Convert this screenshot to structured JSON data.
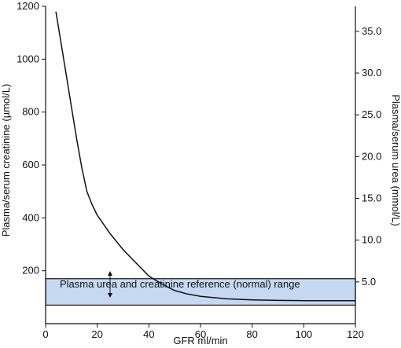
{
  "chart_data": {
    "type": "line",
    "xlabel": "GFR ml/min",
    "ylabel_left": "Plasma/serum creatinine (µmol/L)",
    "ylabel_right": "Plasma/serum urea (mmol/L)",
    "xlim": [
      0,
      120
    ],
    "ylim_left": [
      0,
      1200
    ],
    "ylim_right": [
      0,
      38
    ],
    "x_ticks": [
      0,
      20,
      40,
      60,
      80,
      100,
      120
    ],
    "y_left_ticks": [
      200,
      400,
      600,
      800,
      1000,
      1200
    ],
    "y_right_ticks": [
      "5.0",
      "10.0",
      "15.0",
      "20.0",
      "25.0",
      "30.0",
      "35.0"
    ],
    "reference_band": {
      "label": "Plasma urea and creatinine reference (normal) range",
      "y_min": 70,
      "y_max": 170,
      "color": "#c6d9f1"
    },
    "series": [
      {
        "x": [
          4,
          6,
          8,
          10,
          12,
          14,
          16,
          18,
          20,
          25,
          30,
          35,
          40,
          45,
          50,
          55,
          60,
          70,
          80,
          90,
          100,
          110,
          120
        ],
        "y": [
          1180,
          1060,
          940,
          820,
          700,
          590,
          500,
          450,
          410,
          340,
          280,
          230,
          180,
          150,
          125,
          112,
          103,
          94,
          90,
          88,
          87,
          87,
          87
        ]
      }
    ],
    "grid": false
  }
}
